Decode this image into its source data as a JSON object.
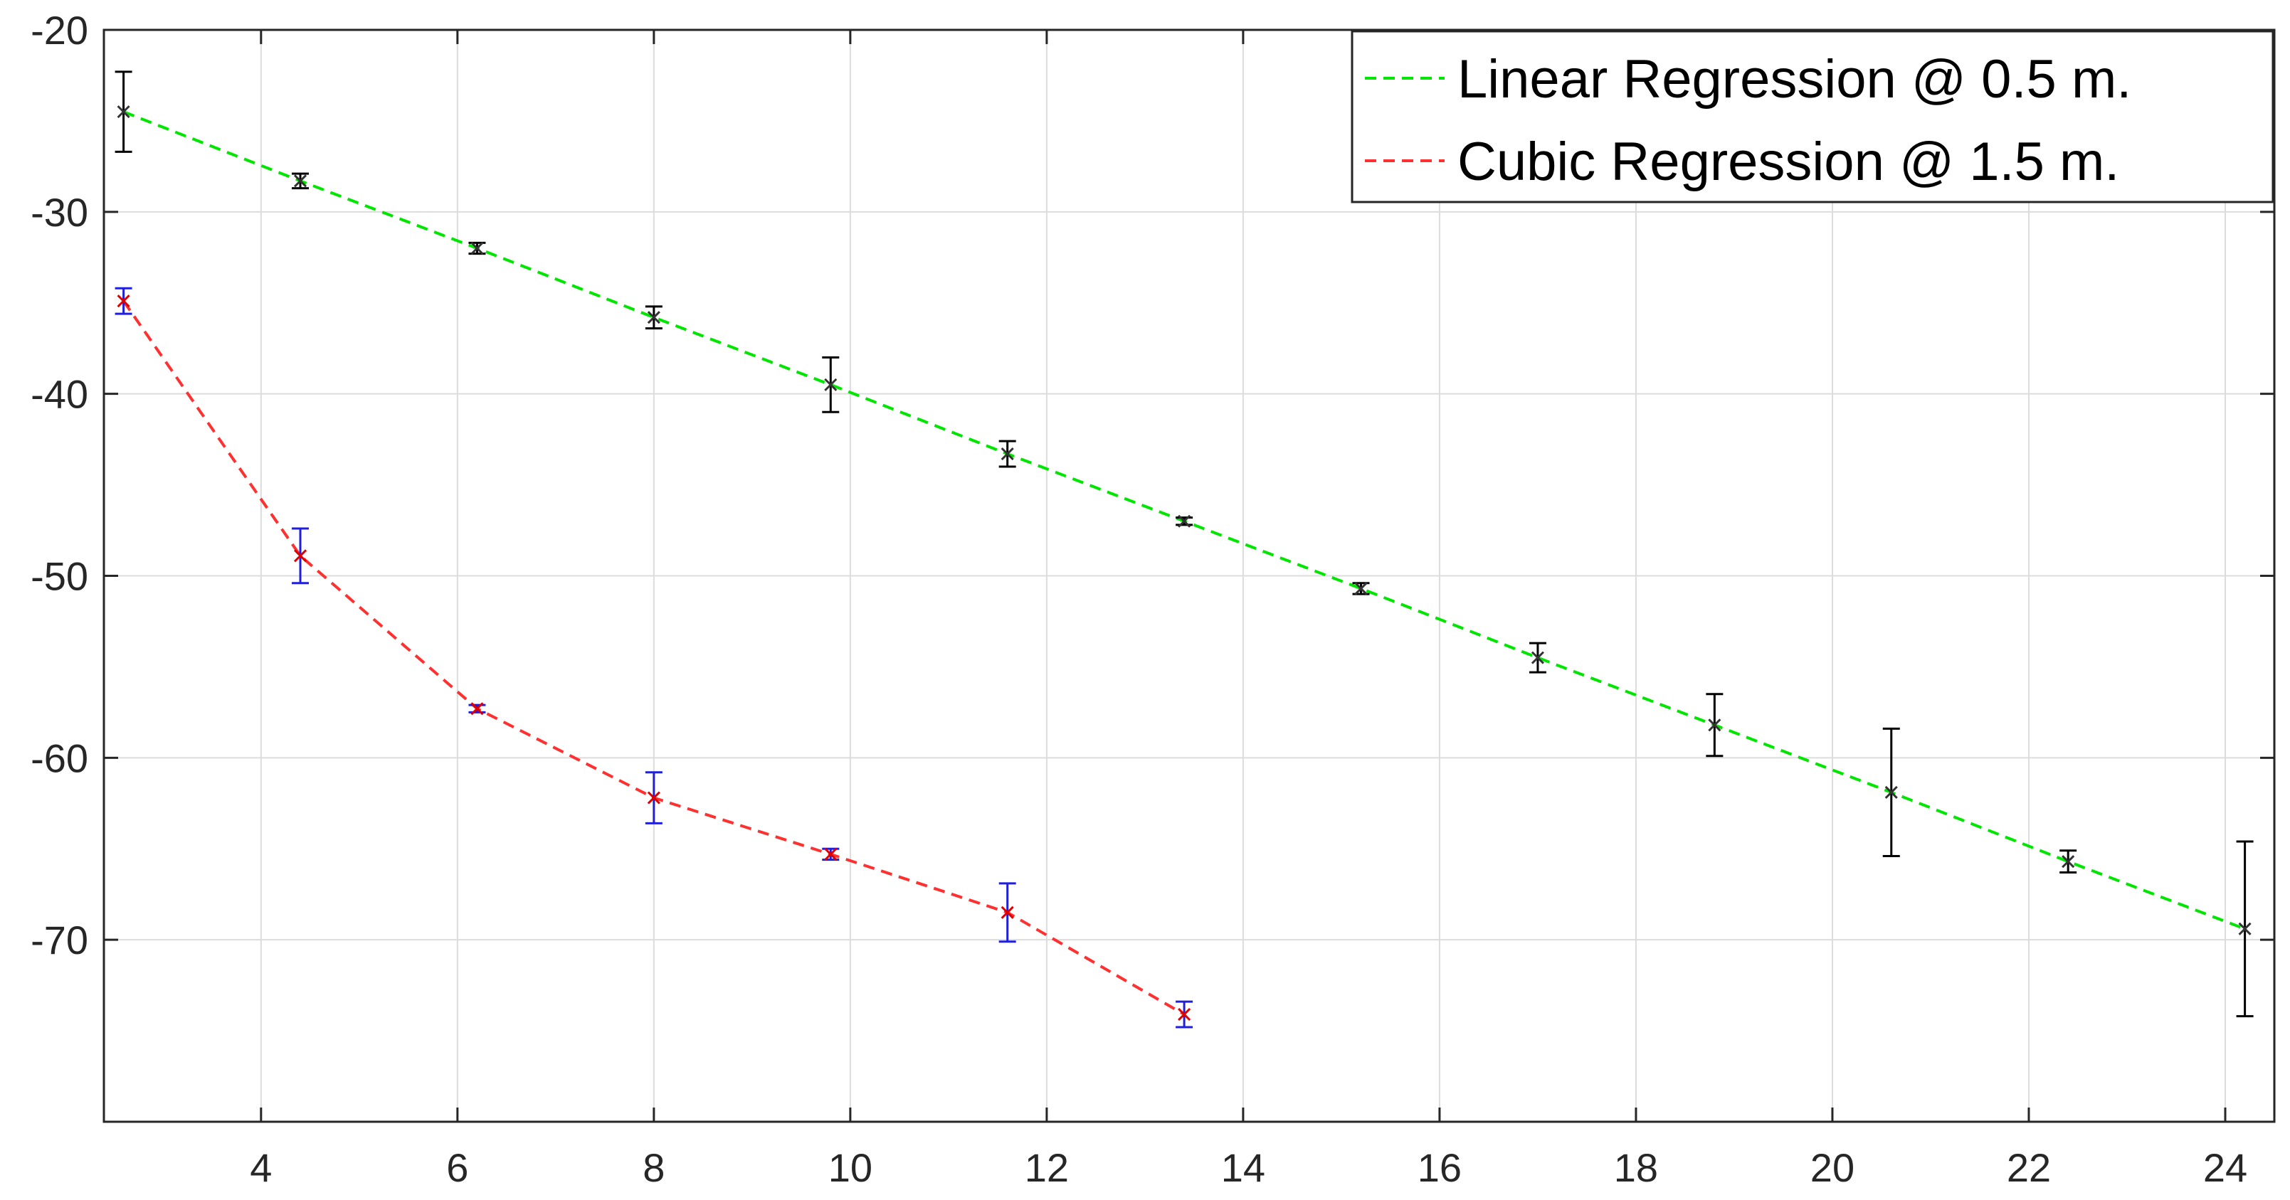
{
  "chart_data": {
    "type": "line",
    "title": "",
    "xlabel": "",
    "ylabel": "",
    "xlim": [
      2.4,
      24.5
    ],
    "ylim": [
      -80,
      -20
    ],
    "xticks": [
      4,
      6,
      8,
      10,
      12,
      14,
      16,
      18,
      20,
      22,
      24
    ],
    "yticks": [
      -20,
      -30,
      -40,
      -50,
      -60,
      -70
    ],
    "grid": true,
    "legend_placement": "top-right",
    "series": [
      {
        "name": "Linear Regression @ 0.5 m.",
        "line_color": "#00e600",
        "line_style": "dashed",
        "marker": "x",
        "marker_color": "#333333",
        "errorbar_color": "#000000",
        "x": [
          2.6,
          4.4,
          6.2,
          8.0,
          9.8,
          11.6,
          13.4,
          15.2,
          17.0,
          18.8,
          20.6,
          22.4,
          24.2
        ],
        "y": [
          -24.5,
          -28.3,
          -32.0,
          -35.8,
          -39.5,
          -43.3,
          -47.0,
          -50.7,
          -54.5,
          -58.2,
          -61.9,
          -65.7,
          -69.4
        ],
        "err": [
          2.2,
          0.4,
          0.3,
          0.6,
          1.5,
          0.7,
          0.2,
          0.3,
          0.8,
          1.7,
          3.5,
          0.6,
          4.8
        ]
      },
      {
        "name": "Cubic  Regression @ 1.5 m.",
        "line_color": "#ff3030",
        "line_style": "dashed",
        "marker": "x",
        "marker_color": "#e00000",
        "errorbar_color": "#1f1fdc",
        "x": [
          2.6,
          4.4,
          6.2,
          8.0,
          9.8,
          11.6,
          13.4
        ],
        "y": [
          -34.9,
          -48.9,
          -57.3,
          -62.2,
          -65.3,
          -68.5,
          -74.1
        ],
        "err": [
          0.7,
          1.5,
          0.2,
          1.4,
          0.3,
          1.6,
          0.7
        ]
      }
    ]
  }
}
